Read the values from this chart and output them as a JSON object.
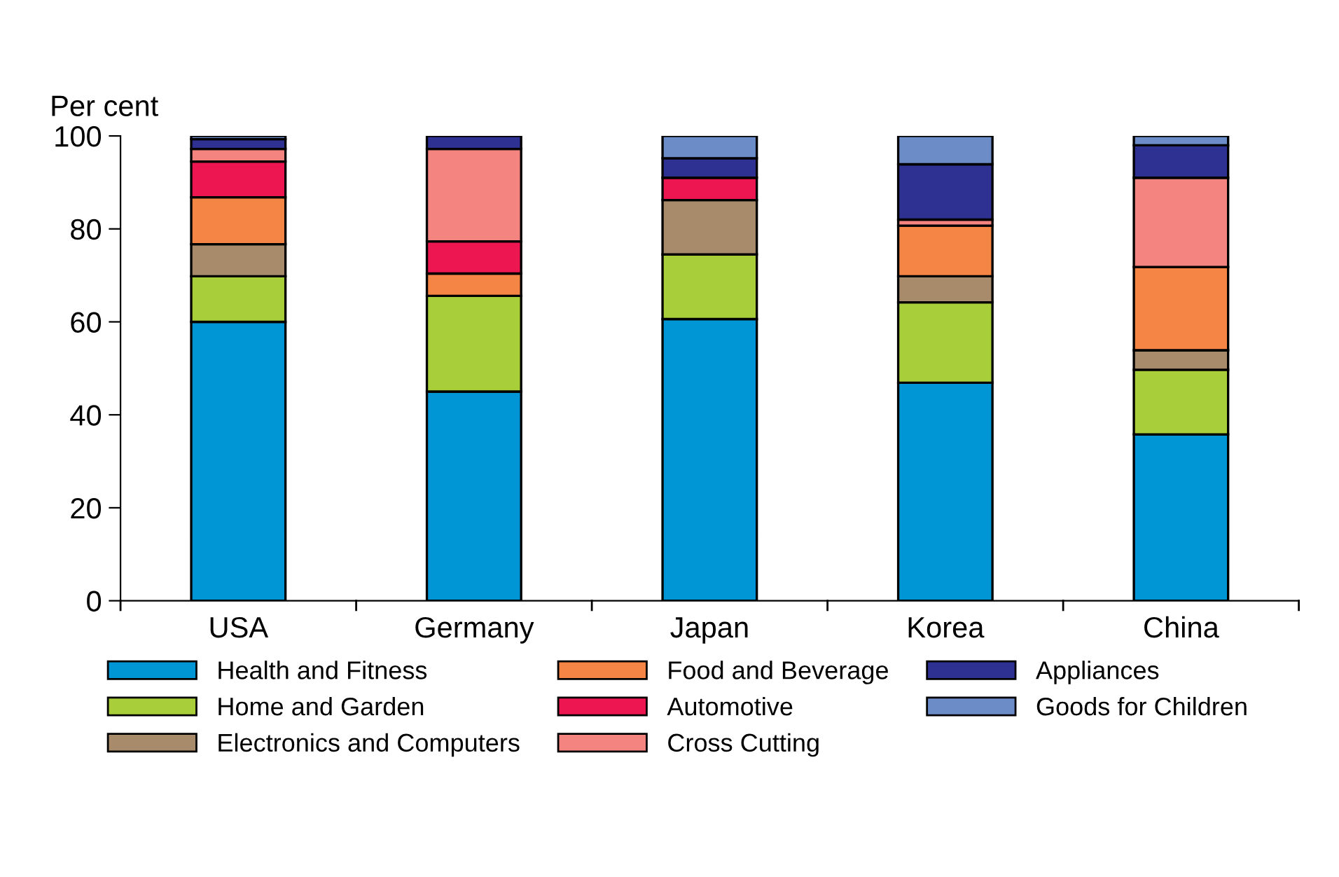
{
  "chart_data": {
    "type": "bar",
    "stacked": true,
    "ylabel": "Per cent",
    "categories": [
      "USA",
      "Germany",
      "Japan",
      "Korea",
      "China"
    ],
    "series": [
      {
        "name": "Health and Fitness",
        "color": "#0096d6",
        "values": [
          60.0,
          45.0,
          60.6,
          46.9,
          35.8
        ]
      },
      {
        "name": "Home and Garden",
        "color": "#a8cf3a",
        "values": [
          9.8,
          20.6,
          13.9,
          17.3,
          13.9
        ]
      },
      {
        "name": "Electronics and Computers",
        "color": "#a88b6b",
        "values": [
          6.9,
          null,
          11.7,
          5.6,
          4.2
        ]
      },
      {
        "name": "Food and Beverage",
        "color": "#f58545",
        "values": [
          10.1,
          4.8,
          null,
          10.9,
          17.9
        ]
      },
      {
        "name": "Automotive",
        "color": "#ee1650",
        "values": [
          7.7,
          6.9,
          4.8,
          null,
          null
        ]
      },
      {
        "name": "Cross Cutting",
        "color": "#f48480",
        "values": [
          2.7,
          19.9,
          null,
          1.3,
          19.2
        ]
      },
      {
        "name": "Appliances",
        "color": "#2e3192",
        "values": [
          2.1,
          2.8,
          4.2,
          11.9,
          7.0
        ]
      },
      {
        "name": "Goods for Children",
        "color": "#6c8cc8",
        "values": [
          0.7,
          null,
          4.8,
          6.1,
          2.0
        ]
      }
    ],
    "ylim": [
      0,
      100
    ],
    "yticks": [
      0,
      20,
      40,
      60,
      80,
      100
    ],
    "grid": false,
    "legend": "bottom"
  }
}
